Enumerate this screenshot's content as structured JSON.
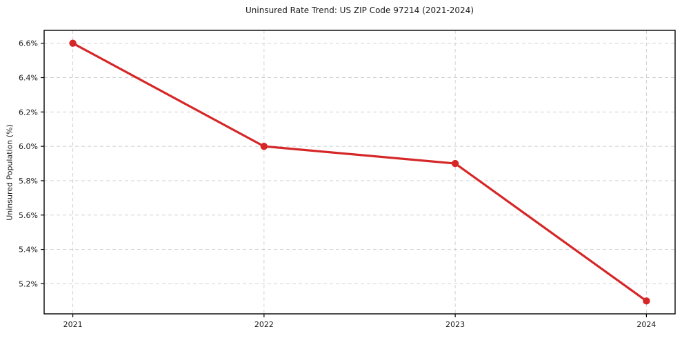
{
  "chart_data": {
    "type": "line",
    "title": "Uninsured Rate Trend: US ZIP Code 97214 (2021-2024)",
    "xlabel": "",
    "ylabel": "Uninsured Population (%)",
    "x": [
      2021,
      2022,
      2023,
      2024
    ],
    "values": [
      6.6,
      6.0,
      5.9,
      5.1
    ],
    "x_tick_labels": [
      "2021",
      "2022",
      "2023",
      "2024"
    ],
    "y_ticks": [
      5.2,
      5.4,
      5.6,
      5.8,
      6.0,
      6.2,
      6.4,
      6.6
    ],
    "y_tick_labels": [
      "5.2%",
      "5.4%",
      "5.6%",
      "5.8%",
      "6.0%",
      "6.2%",
      "6.4%",
      "6.6%"
    ],
    "xlim": [
      2020.85,
      2024.15
    ],
    "ylim": [
      5.025,
      6.675
    ],
    "grid": true,
    "grid_style": "dashed",
    "legend": false,
    "line_color": "#d62728",
    "marker": "circle",
    "grid_color": "#cccccc",
    "spine_color": "#000000",
    "text_color": "#1a1a1a"
  }
}
